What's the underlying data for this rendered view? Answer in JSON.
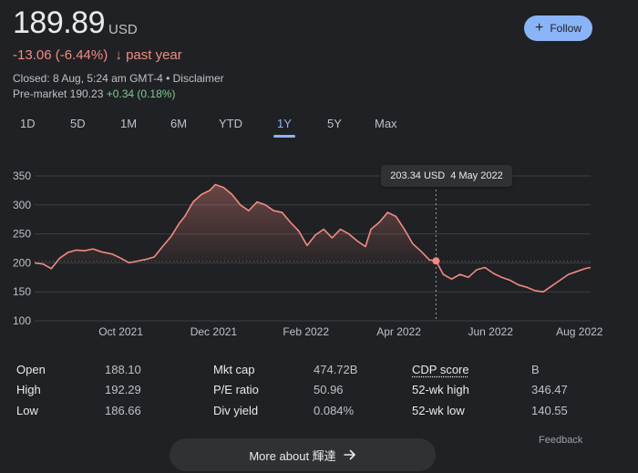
{
  "quote": {
    "price": "189.89",
    "currency": "USD",
    "change_text": "-13.06 (-6.44%)",
    "change_arrow": "↓",
    "change_period": "past year",
    "closed_text": "Closed: 8 Aug, 5:24 am GMT-4 • Disclaimer",
    "premarket_label": "Pre-market 190.23",
    "premarket_change": "+0.34 (0.18%)"
  },
  "follow_button": {
    "icon": "plus-icon",
    "label": "Follow"
  },
  "ranges": [
    "1D",
    "5D",
    "1M",
    "6M",
    "YTD",
    "1Y",
    "5Y",
    "Max"
  ],
  "active_range": "1Y",
  "tooltip": {
    "price": "203.34 USD",
    "date": "4 May 2022"
  },
  "chart_data": {
    "type": "line",
    "ylim": [
      100,
      350
    ],
    "yticks": [
      100,
      150,
      200,
      250,
      300,
      350
    ],
    "xtick_labels": [
      "Oct 2021",
      "Dec 2021",
      "Feb 2022",
      "Apr 2022",
      "Jun 2022",
      "Aug 2022"
    ],
    "baseline": 203,
    "highlight": {
      "x": 0.722,
      "value": 203.34,
      "date": "4 May 2022"
    },
    "series": [
      {
        "color": "#f28b82",
        "points": [
          [
            0.0,
            200
          ],
          [
            0.015,
            198
          ],
          [
            0.03,
            190
          ],
          [
            0.045,
            208
          ],
          [
            0.06,
            218
          ],
          [
            0.075,
            222
          ],
          [
            0.09,
            221
          ],
          [
            0.105,
            224
          ],
          [
            0.12,
            219
          ],
          [
            0.14,
            215
          ],
          [
            0.155,
            208
          ],
          [
            0.17,
            200
          ],
          [
            0.185,
            203
          ],
          [
            0.2,
            206
          ],
          [
            0.215,
            210
          ],
          [
            0.23,
            228
          ],
          [
            0.245,
            245
          ],
          [
            0.26,
            268
          ],
          [
            0.27,
            280
          ],
          [
            0.285,
            305
          ],
          [
            0.3,
            318
          ],
          [
            0.315,
            325
          ],
          [
            0.325,
            335
          ],
          [
            0.34,
            330
          ],
          [
            0.355,
            318
          ],
          [
            0.37,
            300
          ],
          [
            0.385,
            290
          ],
          [
            0.4,
            305
          ],
          [
            0.415,
            300
          ],
          [
            0.43,
            290
          ],
          [
            0.445,
            287
          ],
          [
            0.46,
            270
          ],
          [
            0.475,
            255
          ],
          [
            0.49,
            230
          ],
          [
            0.505,
            248
          ],
          [
            0.52,
            258
          ],
          [
            0.535,
            243
          ],
          [
            0.55,
            258
          ],
          [
            0.565,
            250
          ],
          [
            0.58,
            238
          ],
          [
            0.595,
            228
          ],
          [
            0.605,
            258
          ],
          [
            0.62,
            270
          ],
          [
            0.635,
            287
          ],
          [
            0.65,
            280
          ],
          [
            0.665,
            258
          ],
          [
            0.68,
            233
          ],
          [
            0.695,
            220
          ],
          [
            0.71,
            205
          ],
          [
            0.722,
            203.34
          ],
          [
            0.735,
            180
          ],
          [
            0.75,
            172
          ],
          [
            0.765,
            180
          ],
          [
            0.78,
            175
          ],
          [
            0.795,
            188
          ],
          [
            0.81,
            192
          ],
          [
            0.825,
            182
          ],
          [
            0.84,
            175
          ],
          [
            0.855,
            170
          ],
          [
            0.87,
            162
          ],
          [
            0.885,
            158
          ],
          [
            0.9,
            152
          ],
          [
            0.915,
            150
          ],
          [
            0.93,
            160
          ],
          [
            0.945,
            170
          ],
          [
            0.96,
            180
          ],
          [
            0.975,
            185
          ],
          [
            0.99,
            190
          ],
          [
            1.0,
            192
          ]
        ]
      }
    ]
  },
  "stats": {
    "col1": [
      {
        "label": "Open",
        "value": "188.10"
      },
      {
        "label": "High",
        "value": "192.29"
      },
      {
        "label": "Low",
        "value": "186.66"
      }
    ],
    "col2": [
      {
        "label": "Mkt cap",
        "value": "474.72B"
      },
      {
        "label": "P/E ratio",
        "value": "50.96"
      },
      {
        "label": "Div yield",
        "value": "0.084%"
      }
    ],
    "col3": [
      {
        "label": "CDP score",
        "value": "B"
      },
      {
        "label": "52-wk high",
        "value": "346.47"
      },
      {
        "label": "52-wk low",
        "value": "140.55"
      }
    ]
  },
  "more_button": {
    "label": "More about 輝達",
    "icon": "arrow-right-icon"
  },
  "feedback_label": "Feedback"
}
